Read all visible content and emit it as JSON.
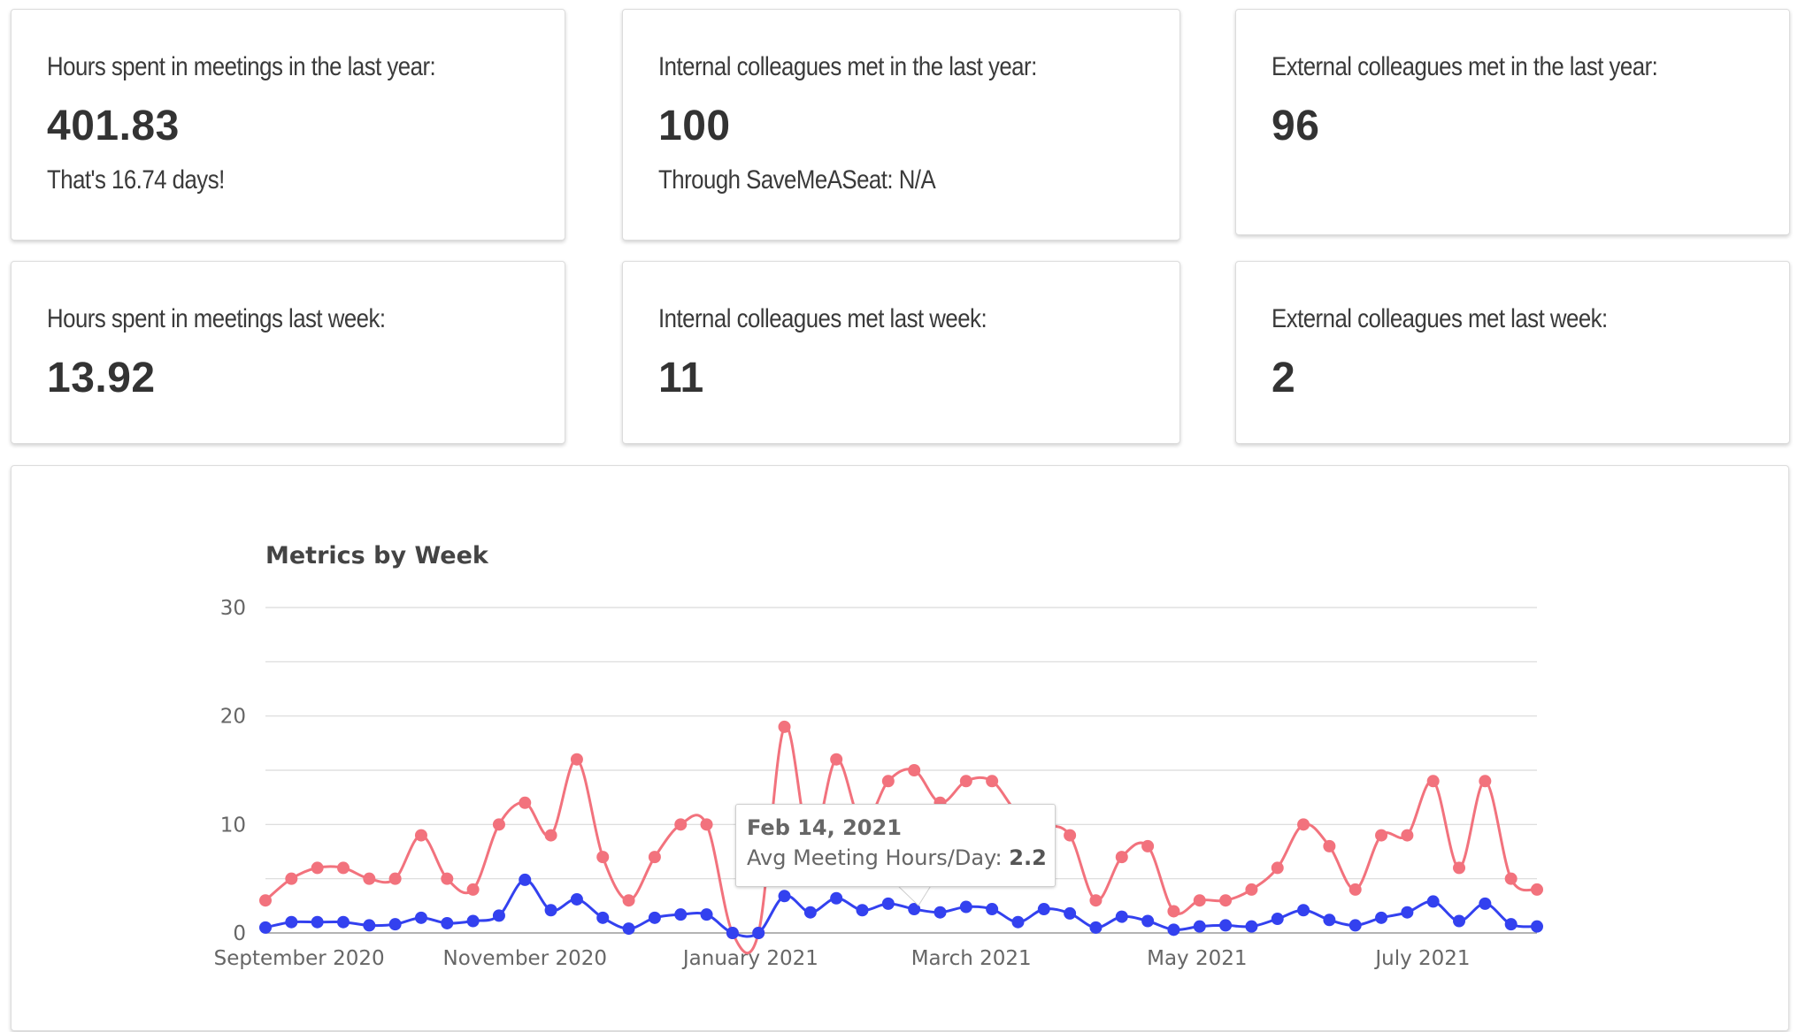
{
  "cards": [
    {
      "label": "Hours spent in meetings in the last year:",
      "value": "401.83",
      "sub": "That's 16.74 days!"
    },
    {
      "label": "Internal colleagues met in the last year:",
      "value": "100",
      "sub": "Through SaveMeASeat: N/A"
    },
    {
      "label": "External colleagues met in the last year:",
      "value": "96",
      "sub": ""
    },
    {
      "label": "Hours spent in meetings last week:",
      "value": "13.92",
      "sub": ""
    },
    {
      "label": "Internal colleagues met last week:",
      "value": "11",
      "sub": ""
    },
    {
      "label": "External colleagues met last week:",
      "value": "2",
      "sub": ""
    }
  ],
  "tooltip": {
    "date": "Feb 14, 2021",
    "label": "Avg Meeting Hours/Day:",
    "value": "2.2"
  },
  "colors": {
    "series_red": "#f2727d",
    "series_blue": "#3341ef",
    "grid": "#d9d9d9"
  },
  "chart_data": {
    "type": "line",
    "title": "Metrics by Week",
    "xlabel": "",
    "ylabel": "",
    "ylim": [
      0,
      30
    ],
    "yticks": [
      0,
      10,
      20,
      30
    ],
    "grid": true,
    "xtick_labels": [
      {
        "label": "September 2020",
        "index": 1.3
      },
      {
        "label": "November 2020",
        "index": 10
      },
      {
        "label": "January 2021",
        "index": 18.7
      },
      {
        "label": "March 2021",
        "index": 27.2
      },
      {
        "label": "May 2021",
        "index": 35.9
      },
      {
        "label": "July 2021",
        "index": 44.6
      }
    ],
    "series": [
      {
        "values": [
          3,
          5,
          6,
          6,
          5,
          5,
          9,
          5,
          4,
          10,
          12,
          9,
          16,
          7,
          3,
          7,
          10,
          10,
          0,
          0,
          19,
          8,
          16,
          10,
          14,
          15,
          12,
          14,
          14,
          11,
          10,
          9,
          3,
          7,
          8,
          2,
          3,
          3,
          4,
          6,
          10,
          8,
          4,
          9,
          9,
          14,
          6,
          14,
          5,
          4
        ]
      },
      {
        "values": [
          0.5,
          1,
          1,
          1,
          0.7,
          0.8,
          1.4,
          0.9,
          1.1,
          1.6,
          4.9,
          2.1,
          3.1,
          1.4,
          0.4,
          1.4,
          1.7,
          1.7,
          0,
          0,
          3.4,
          1.9,
          3.2,
          2.1,
          2.7,
          2.2,
          1.9,
          2.4,
          2.2,
          1,
          2.2,
          1.8,
          0.5,
          1.5,
          1.1,
          0.3,
          0.6,
          0.7,
          0.6,
          1.3,
          2.1,
          1.2,
          0.7,
          1.4,
          1.9,
          2.9,
          1.1,
          2.7,
          0.8,
          0.6
        ]
      }
    ]
  }
}
